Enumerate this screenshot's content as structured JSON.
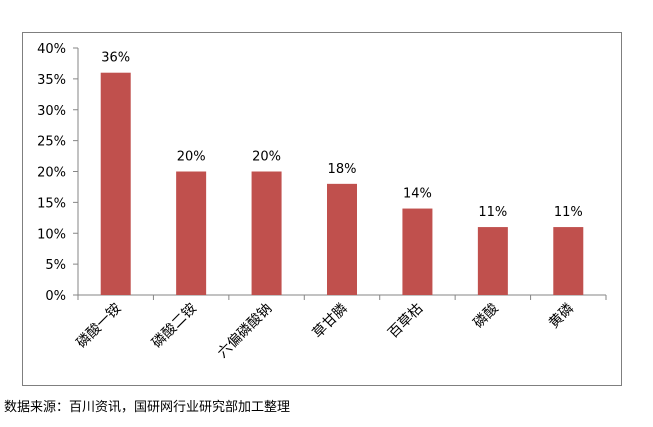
{
  "chart_data": {
    "type": "bar",
    "categories": [
      "磷酸一铵",
      "磷酸二铵",
      "六偏磷酸钠",
      "草甘膦",
      "百草枯",
      "磷酸",
      "黄磷"
    ],
    "values": [
      36,
      20,
      20,
      18,
      14,
      11,
      11
    ],
    "value_labels": [
      "36%",
      "20%",
      "20%",
      "18%",
      "14%",
      "11%",
      "11%"
    ],
    "y_ticks": [
      "0%",
      "5%",
      "10%",
      "15%",
      "20%",
      "25%",
      "30%",
      "35%",
      "40%"
    ],
    "ylim": [
      0,
      40
    ],
    "title": "",
    "xlabel": "",
    "ylabel": "",
    "grid": false,
    "legend": "none",
    "bar_color": "#c0504d"
  },
  "source_note": "数据来源：百川资讯，国研网行业研究部加工整理"
}
